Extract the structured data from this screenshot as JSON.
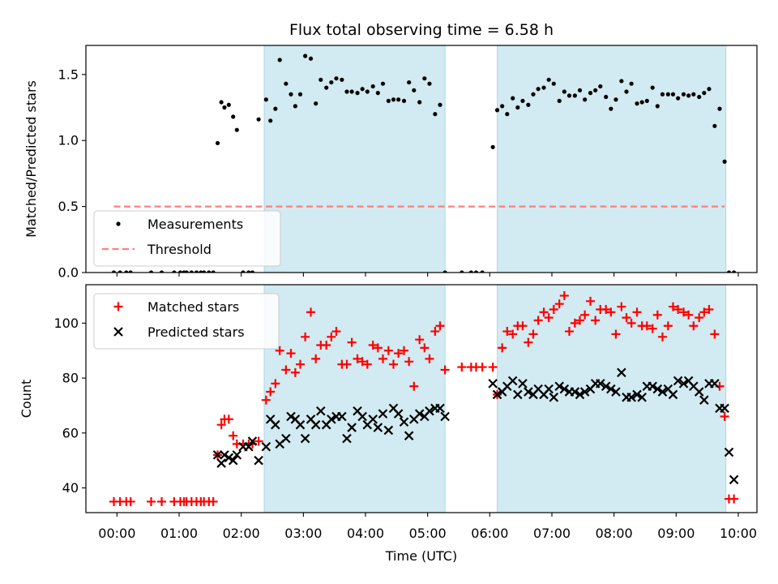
{
  "chart_data": {
    "title": "Flux total observing time = 6.58 h",
    "xlabel": "Time (UTC)",
    "x_ticks": [
      "00:00",
      "01:00",
      "02:00",
      "03:00",
      "04:00",
      "05:00",
      "06:00",
      "07:00",
      "08:00",
      "09:00",
      "10:00"
    ],
    "x_unit": "hours UTC",
    "x_range": [
      -0.5,
      10.3
    ],
    "observing_windows": [
      [
        2.37,
        5.28
      ],
      [
        6.12,
        9.8
      ]
    ],
    "window_color": "#add8e6",
    "panels": [
      {
        "type": "scatter",
        "ylabel": "Matched/Predicted stars",
        "ylim": [
          0,
          1.72
        ],
        "y_ticks": [
          0.0,
          0.5,
          1.0,
          1.5
        ],
        "legend_position": "lower left",
        "series": [
          {
            "name": "Measurements",
            "marker": "dot",
            "color": "#000000",
            "x": [
              -0.05,
              0.05,
              0.15,
              0.22,
              0.55,
              0.72,
              0.92,
              1.02,
              1.08,
              1.12,
              1.2,
              1.28,
              1.35,
              1.4,
              1.48,
              1.55,
              1.62,
              1.68,
              1.73,
              1.8,
              1.87,
              1.93,
              2.03,
              2.12,
              2.18,
              2.28,
              2.4,
              2.47,
              2.55,
              2.62,
              2.72,
              2.8,
              2.87,
              2.95,
              3.03,
              3.12,
              3.2,
              3.28,
              3.37,
              3.45,
              3.53,
              3.62,
              3.7,
              3.78,
              3.87,
              3.95,
              4.03,
              4.12,
              4.2,
              4.28,
              4.37,
              4.45,
              4.53,
              4.62,
              4.7,
              4.78,
              4.87,
              4.95,
              5.03,
              5.12,
              5.2,
              5.28,
              5.55,
              5.7,
              5.78,
              5.88,
              6.05,
              6.12,
              6.2,
              6.28,
              6.37,
              6.45,
              6.53,
              6.62,
              6.7,
              6.78,
              6.87,
              6.95,
              7.03,
              7.12,
              7.2,
              7.28,
              7.37,
              7.45,
              7.53,
              7.62,
              7.7,
              7.78,
              7.87,
              7.95,
              8.03,
              8.12,
              8.2,
              8.28,
              8.37,
              8.45,
              8.53,
              8.62,
              8.7,
              8.78,
              8.87,
              8.95,
              9.03,
              9.12,
              9.2,
              9.28,
              9.37,
              9.45,
              9.53,
              9.62,
              9.7,
              9.78,
              9.85,
              9.93
            ],
            "y": [
              0.0,
              0.0,
              0.0,
              0.0,
              0.0,
              0.0,
              0.0,
              0.0,
              0.0,
              0.0,
              0.0,
              0.0,
              0.0,
              0.0,
              0.0,
              0.0,
              0.98,
              1.29,
              1.25,
              1.27,
              1.18,
              1.08,
              0.0,
              0.0,
              0.0,
              1.16,
              1.31,
              1.15,
              1.24,
              1.61,
              1.43,
              1.35,
              1.26,
              1.35,
              1.64,
              1.62,
              1.28,
              1.46,
              1.4,
              1.44,
              1.47,
              1.46,
              1.37,
              1.37,
              1.36,
              1.39,
              1.37,
              1.41,
              1.36,
              1.43,
              1.3,
              1.31,
              1.31,
              1.3,
              1.44,
              1.38,
              1.29,
              1.47,
              1.43,
              1.2,
              1.27,
              0.0,
              0.0,
              0.0,
              0.0,
              0.0,
              0.95,
              1.23,
              1.26,
              1.2,
              1.32,
              1.25,
              1.3,
              1.27,
              1.35,
              1.39,
              1.4,
              1.46,
              1.43,
              1.3,
              1.37,
              1.34,
              1.34,
              1.38,
              1.31,
              1.36,
              1.38,
              1.41,
              1.33,
              1.24,
              1.31,
              1.45,
              1.37,
              1.43,
              1.28,
              1.29,
              1.3,
              1.4,
              1.26,
              1.35,
              1.35,
              1.35,
              1.32,
              1.35,
              1.34,
              1.35,
              1.33,
              1.36,
              1.39,
              1.11,
              1.24,
              0.84,
              0.0,
              0.0
            ]
          },
          {
            "name": "Threshold",
            "marker": "dashed-line",
            "color": "#ff7f7f",
            "x": [
              -0.05,
              9.78
            ],
            "y": [
              0.5,
              0.5
            ]
          }
        ]
      },
      {
        "type": "scatter",
        "ylabel": "Count",
        "ylim": [
          31,
          114
        ],
        "y_ticks": [
          40,
          60,
          80,
          100
        ],
        "legend_position": "upper left",
        "series": [
          {
            "name": "Matched stars",
            "marker": "plus",
            "color": "#ff0000",
            "x": [
              -0.05,
              0.05,
              0.15,
              0.22,
              0.55,
              0.72,
              0.92,
              1.02,
              1.08,
              1.12,
              1.2,
              1.28,
              1.35,
              1.4,
              1.48,
              1.55,
              1.62,
              1.68,
              1.73,
              1.8,
              1.87,
              1.93,
              2.03,
              2.12,
              2.18,
              2.28,
              2.4,
              2.47,
              2.55,
              2.62,
              2.72,
              2.8,
              2.87,
              2.95,
              3.03,
              3.12,
              3.2,
              3.28,
              3.37,
              3.45,
              3.53,
              3.62,
              3.7,
              3.78,
              3.87,
              3.95,
              4.03,
              4.12,
              4.2,
              4.28,
              4.37,
              4.45,
              4.53,
              4.62,
              4.7,
              4.78,
              4.87,
              4.95,
              5.03,
              5.12,
              5.2,
              5.28,
              5.55,
              5.7,
              5.78,
              5.88,
              6.05,
              6.12,
              6.2,
              6.28,
              6.37,
              6.45,
              6.53,
              6.62,
              6.7,
              6.78,
              6.87,
              6.95,
              7.03,
              7.12,
              7.2,
              7.28,
              7.37,
              7.45,
              7.53,
              7.62,
              7.7,
              7.78,
              7.87,
              7.95,
              8.03,
              8.12,
              8.2,
              8.28,
              8.37,
              8.45,
              8.53,
              8.62,
              8.7,
              8.78,
              8.87,
              8.95,
              9.03,
              9.12,
              9.2,
              9.28,
              9.37,
              9.45,
              9.53,
              9.62,
              9.7,
              9.78,
              9.85,
              9.93
            ],
            "y": [
              35,
              35,
              35,
              35,
              35,
              35,
              35,
              35,
              35,
              35,
              35,
              35,
              35,
              35,
              35,
              35,
              52,
              63,
              65,
              65,
              59,
              56,
              56,
              56,
              56,
              57,
              72,
              75,
              78,
              90,
              83,
              89,
              82,
              85,
              95,
              104,
              87,
              92,
              92,
              95,
              97,
              85,
              85,
              93,
              87,
              86,
              85,
              92,
              91,
              87,
              90,
              85,
              89,
              90,
              86,
              77,
              94,
              91,
              87,
              97,
              99,
              83,
              84,
              84,
              84,
              84,
              84,
              74,
              91,
              97,
              96,
              99,
              99,
              93,
              96,
              101,
              104,
              102,
              105,
              107,
              110,
              97,
              100,
              101,
              103,
              108,
              101,
              105,
              105,
              104,
              96,
              106,
              102,
              100,
              104,
              99,
              99,
              98,
              103,
              95,
              99,
              106,
              105,
              104,
              103,
              99,
              102,
              104,
              105,
              96,
              77,
              66,
              36,
              36
            ]
          },
          {
            "name": "Predicted stars",
            "marker": "x",
            "color": "#000000",
            "x": [
              1.62,
              1.68,
              1.73,
              1.8,
              1.87,
              1.93,
              2.03,
              2.12,
              2.18,
              2.28,
              2.4,
              2.47,
              2.55,
              2.62,
              2.72,
              2.8,
              2.87,
              2.95,
              3.03,
              3.12,
              3.2,
              3.28,
              3.37,
              3.45,
              3.53,
              3.62,
              3.7,
              3.78,
              3.87,
              3.95,
              4.03,
              4.12,
              4.2,
              4.28,
              4.37,
              4.45,
              4.53,
              4.62,
              4.7,
              4.78,
              4.87,
              4.95,
              5.03,
              5.12,
              5.2,
              5.28,
              6.05,
              6.12,
              6.2,
              6.28,
              6.37,
              6.45,
              6.53,
              6.62,
              6.7,
              6.78,
              6.87,
              6.95,
              7.03,
              7.12,
              7.2,
              7.28,
              7.37,
              7.45,
              7.53,
              7.62,
              7.7,
              7.78,
              7.87,
              7.95,
              8.03,
              8.12,
              8.2,
              8.28,
              8.37,
              8.45,
              8.53,
              8.62,
              8.7,
              8.78,
              8.87,
              8.95,
              9.03,
              9.12,
              9.2,
              9.28,
              9.37,
              9.45,
              9.53,
              9.62,
              9.7,
              9.78,
              9.85,
              9.93
            ],
            "y": [
              52,
              49,
              52,
              51,
              50,
              52,
              55,
              55,
              57,
              50,
              55,
              65,
              63,
              56,
              58,
              66,
              65,
              63,
              58,
              65,
              63,
              68,
              63,
              65,
              66,
              66,
              58,
              62,
              68,
              66,
              63,
              65,
              62,
              67,
              61,
              69,
              67,
              64,
              59,
              65,
              67,
              66,
              68,
              69,
              69,
              66,
              78,
              74,
              75,
              77,
              79,
              74,
              78,
              75,
              74,
              76,
              74,
              76,
              73,
              77,
              76,
              75,
              75,
              74,
              75,
              76,
              78,
              78,
              77,
              76,
              75,
              82,
              73,
              73,
              74,
              73,
              77,
              77,
              76,
              75,
              76,
              74,
              79,
              78,
              79,
              77,
              75,
              72,
              78,
              78,
              69,
              69,
              53,
              43
            ]
          }
        ]
      }
    ]
  }
}
